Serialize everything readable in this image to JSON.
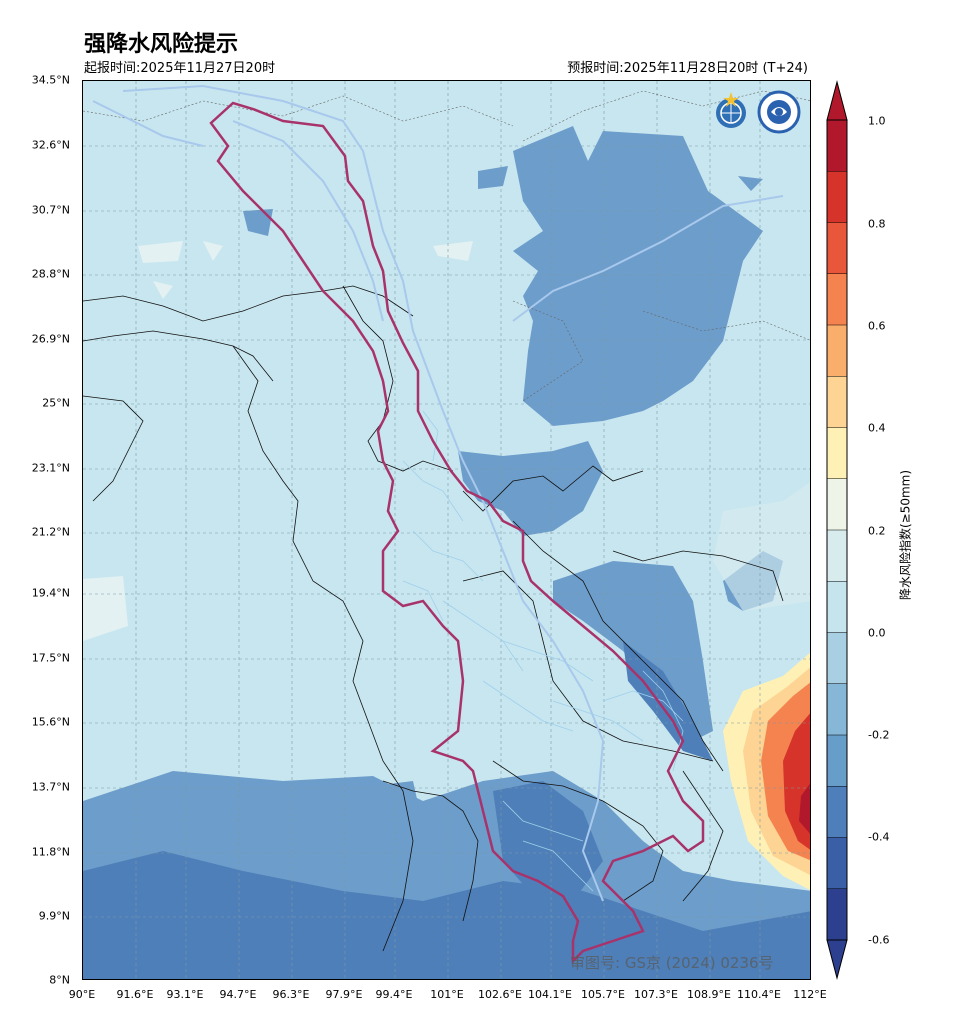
{
  "header": {
    "title": "强降水风险提示",
    "issue_time": "起报时间:2025年11月27日20时",
    "forecast_time": "预报时间:2025年11月28日20时 (T+24)"
  },
  "axes": {
    "lat_ticks": [
      "34.5°N",
      "32.6°N",
      "30.7°N",
      "28.8°N",
      "26.9°N",
      "25°N",
      "23.1°N",
      "21.2°N",
      "19.4°N",
      "17.5°N",
      "15.6°N",
      "13.7°N",
      "11.8°N",
      "9.9°N",
      "8°N"
    ],
    "lon_ticks": [
      "90°E",
      "91.6°E",
      "93.1°E",
      "94.7°E",
      "96.3°E",
      "97.9°E",
      "99.4°E",
      "101°E",
      "102.6°E",
      "104.1°E",
      "105.7°E",
      "107.3°E",
      "108.9°E",
      "110.4°E",
      "112°E"
    ]
  },
  "colorbar": {
    "label": "降水风险指数(≥50mm)",
    "ticks": [
      "1.0",
      "0.8",
      "0.6",
      "0.4",
      "0.2",
      "0.0",
      "-0.2",
      "-0.4",
      "-0.6"
    ],
    "colors": [
      "#b2182b",
      "#d6342a",
      "#e9573a",
      "#f4834f",
      "#f9ae6b",
      "#fdd493",
      "#fff1b5",
      "#eef5e8",
      "#d8ecee",
      "#c5e4ee",
      "#a9cfe3",
      "#86b7d7",
      "#679ec9",
      "#4e7fba",
      "#3b5fa6",
      "#2d3f8f"
    ]
  },
  "logos": {
    "left": "wmo-logo",
    "right": "cma-logo"
  },
  "watermark": "审图号: GS京 (2024) 0236号",
  "colors": {
    "background": "#c8e6ef",
    "basin_outline": "#a8336b",
    "river": "#9fd0ec",
    "low_blue": "#6d9dcb",
    "mid_blue": "#4e7fb8"
  }
}
